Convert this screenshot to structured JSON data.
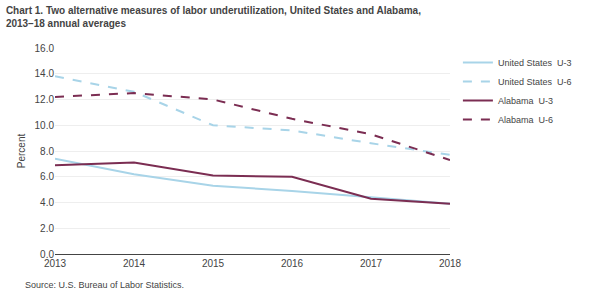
{
  "chart_data": {
    "type": "line",
    "title": "Chart 1. Two alternative measures of labor underutilization, United States and Alabama,",
    "subtitle": "2013–18 annual averages",
    "ylabel": "Percent",
    "annotations": [
      "Source: U.S. Bureau of Labor Statistics."
    ],
    "x": [
      2013,
      2014,
      2015,
      2016,
      2017,
      2018
    ],
    "series": [
      {
        "name": "United States  U-3",
        "color": "#a8d4e8",
        "line_style": "solid",
        "values": [
          7.4,
          6.2,
          5.3,
          4.9,
          4.4,
          3.9
        ]
      },
      {
        "name": "United States  U-6",
        "color": "#a8d4e8",
        "line_style": "dashed",
        "values": [
          13.8,
          12.6,
          10.0,
          9.6,
          8.6,
          7.7
        ]
      },
      {
        "name": "Alabama  U-3",
        "color": "#7b2d52",
        "line_style": "solid",
        "values": [
          6.9,
          7.1,
          6.1,
          6.0,
          4.3,
          3.9
        ]
      },
      {
        "name": "Alabama  U-6",
        "color": "#7b2d52",
        "line_style": "dashed",
        "values": [
          12.2,
          12.5,
          12.0,
          10.5,
          9.3,
          7.3
        ]
      }
    ],
    "xlim": [
      2013,
      2018
    ],
    "xticks": [
      2013,
      2014,
      2015,
      2016,
      2017,
      2018
    ],
    "ylim": [
      0.0,
      16.0
    ],
    "yticks": [
      {
        "value": 0.0,
        "label": "0.0"
      },
      {
        "value": 2.0,
        "label": "2.0"
      },
      {
        "value": 4.0,
        "label": "4.0"
      },
      {
        "value": 6.0,
        "label": "6.0"
      },
      {
        "value": 8.0,
        "label": "8.0"
      },
      {
        "value": 10.0,
        "label": "10.0"
      },
      {
        "value": 12.0,
        "label": "12.0"
      },
      {
        "value": 14.0,
        "label": "14.0"
      },
      {
        "value": 16.0,
        "label": "16.0"
      }
    ],
    "grid": true,
    "legend": "upper right"
  }
}
